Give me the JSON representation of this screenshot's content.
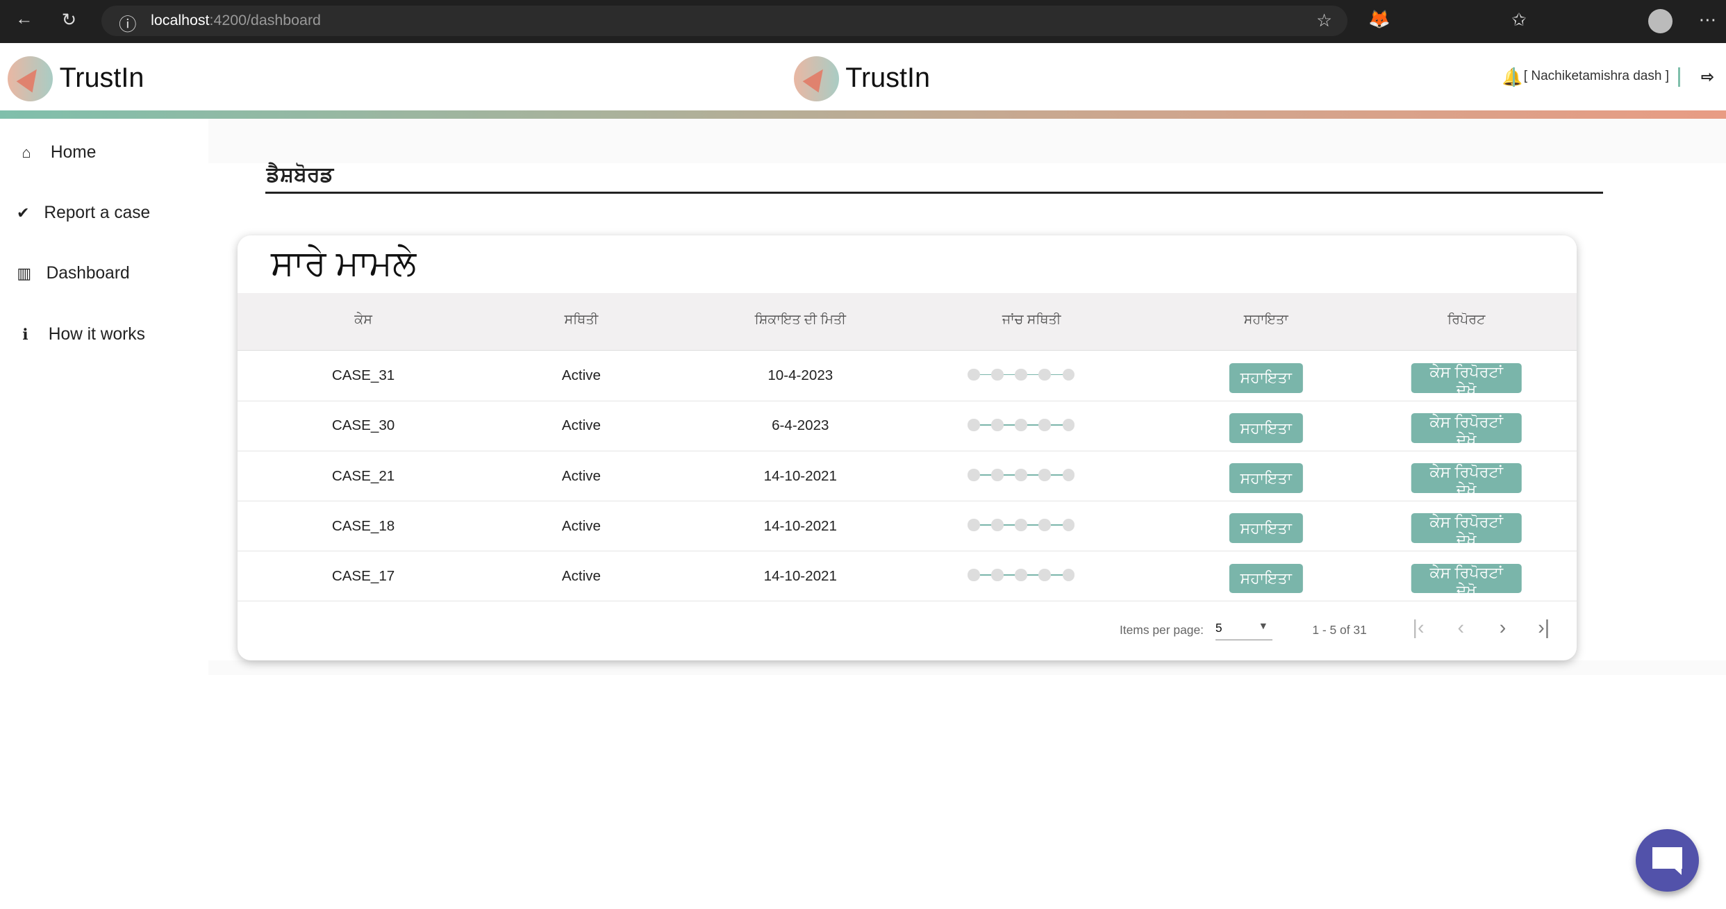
{
  "browser": {
    "url_host": "localhost",
    "url_path": ":4200/dashboard"
  },
  "header": {
    "brand": "TrustIn",
    "user": "[ Nachiketamishra dash ]"
  },
  "sidebar": {
    "items": [
      {
        "label": "Home",
        "icon": "home-icon"
      },
      {
        "label": "Report a case",
        "icon": "clipboard-check-icon"
      },
      {
        "label": "Dashboard",
        "icon": "bar-chart-icon"
      },
      {
        "label": "How it works",
        "icon": "info-icon"
      }
    ]
  },
  "page": {
    "title": "ਡੈਸ਼ਬੋਰਡ"
  },
  "card": {
    "title": "ਸਾਰੇ ਮਾਮਲੇ",
    "columns": [
      "ਕੇਸ",
      "ਸਥਿਤੀ",
      "ਸ਼ਿਕਾਇਤ ਦੀ ਮਿਤੀ",
      "ਜਾਂਚ ਸਥਿਤੀ",
      "ਸਹਾਇਤਾ",
      "ਰਿਪੋਰਟ"
    ],
    "help_label": "ਸਹਾਇਤਾ",
    "report_label": "ਕੇਸ ਰਿਪੋਰਟਾਂ ਦੇਖੋ",
    "rows": [
      {
        "case": "CASE_31",
        "status": "Active",
        "date": "10-4-2023",
        "progress_steps_done": 0
      },
      {
        "case": "CASE_30",
        "status": "Active",
        "date": "6-4-2023",
        "progress_steps_done": 0
      },
      {
        "case": "CASE_21",
        "status": "Active",
        "date": "14-10-2021",
        "progress_steps_done": 0
      },
      {
        "case": "CASE_18",
        "status": "Active",
        "date": "14-10-2021",
        "progress_steps_done": 0
      },
      {
        "case": "CASE_17",
        "status": "Active",
        "date": "14-10-2021",
        "progress_steps_done": 0
      }
    ]
  },
  "pagination": {
    "items_per_page_label": "Items per page:",
    "items_per_page": "5",
    "range": "1 - 5 of 31"
  },
  "colors": {
    "accent": "#7ab5aa",
    "chat": "#5252aa"
  }
}
